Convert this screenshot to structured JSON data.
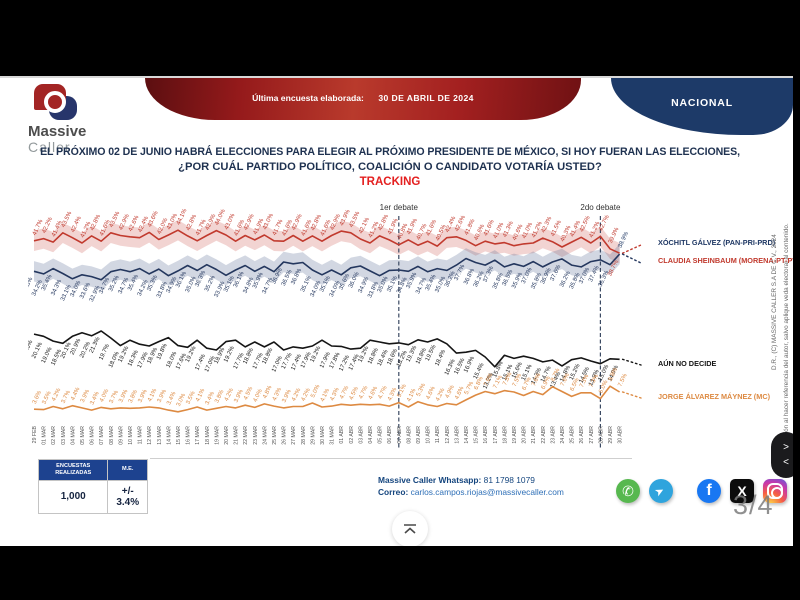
{
  "header": {
    "logo_line1": "Massive",
    "logo_line2": "Caller",
    "banner_label": "Última encuesta elaborada:",
    "banner_date": "30 DE ABRIL DE 2024",
    "region_button": "NACIONAL"
  },
  "question": {
    "line1": "EL PRÓXIMO 02 DE JUNIO HABRÁ ELECCIONES PARA ELEGIR AL PRÓXIMO PRESIDENTE DE MÉXICO, SI HOY FUERAN LAS ELECCIONES,",
    "line2": "¿POR CUÁL PARTIDO POLÍTICO, COALICIÓN O CANDIDATO VOTARÍA USTED?",
    "tracking": "TRACKING"
  },
  "chart_data": {
    "type": "line",
    "title": "TRACKING",
    "grid": false,
    "legend_position": "right",
    "ylim": [
      0,
      50
    ],
    "x": [
      "29 FEB",
      "01 MAR",
      "02 MAR",
      "03 MAR",
      "04 MAR",
      "05 MAR",
      "06 MAR",
      "07 MAR",
      "08 MAR",
      "09 MAR",
      "10 MAR",
      "11 MAR",
      "12 MAR",
      "13 MAR",
      "14 MAR",
      "15 MAR",
      "16 MAR",
      "17 MAR",
      "18 MAR",
      "19 MAR",
      "20 MAR",
      "21 MAR",
      "22 MAR",
      "23 MAR",
      "24 MAR",
      "25 MAR",
      "26 MAR",
      "27 MAR",
      "28 MAR",
      "29 MAR",
      "30 MAR",
      "31 MAR",
      "01 ABR",
      "02 ABR",
      "03 ABR",
      "04 ABR",
      "05 ABR",
      "06 ABR",
      "07 ABR",
      "08 ABR",
      "09 ABR",
      "10 ABR",
      "11 ABR",
      "12 ABR",
      "13 ABR",
      "14 ABR",
      "15 ABR",
      "16 ABR",
      "17 ABR",
      "18 ABR",
      "19 ABR",
      "20 ABR",
      "21 ABR",
      "22 ABR",
      "23 ABR",
      "24 ABR",
      "25 ABR",
      "26 ABR",
      "27 ABR",
      "28 ABR",
      "29 ABR",
      "30 ABR"
    ],
    "annotations": [
      {
        "label": "1er debate",
        "x": "07 ABR"
      },
      {
        "label": "2do debate",
        "x": "28 ABR"
      }
    ],
    "series": [
      {
        "name": "XÓCHITL GÁLVEZ (PAN-PRI-PRD)",
        "color": "#c13a2e",
        "name_color": "#1f3864",
        "final_label_color": "#1f3864",
        "band_color": "rgba(196,60,50,0.22)",
        "labels_above": true,
        "values": [
          41.7,
          42.2,
          41.4,
          43.5,
          42.4,
          41.2,
          42.8,
          41.6,
          43.5,
          42.9,
          42.6,
          42.4,
          43.6,
          42.0,
          43.0,
          44.1,
          42.8,
          41.7,
          42.9,
          44.0,
          43.0,
          41.6,
          42.9,
          41.9,
          43.0,
          41.7,
          41.6,
          42.9,
          41.6,
          42.8,
          41.6,
          42.9,
          43.9,
          43.5,
          42.1,
          41.2,
          42.8,
          41.9,
          40.8,
          41.9,
          40.7,
          41.6,
          40.5,
          42.4,
          42.6,
          41.8,
          40.6,
          41.6,
          41.0,
          41.3,
          40.6,
          41.0,
          41.2,
          42.3,
          41.5,
          40.3,
          41.4,
          42.5,
          41.2,
          42.7,
          39.9,
          38.9
        ]
      },
      {
        "name": "CLAUDIA SHEINBAUM (MORENA-PT-PVEM)",
        "color": "#24375e",
        "name_color": "#c13a2e",
        "final_label_color": "#c13a2e",
        "band_color": "rgba(95,112,152,0.28)",
        "labels_above": false,
        "values": [
          34.8,
          34.2,
          35.4,
          34.3,
          33.1,
          34.0,
          33.6,
          32.9,
          34.7,
          35.2,
          34.7,
          35.4,
          34.2,
          35.3,
          33.8,
          34.9,
          36.1,
          35.0,
          36.3,
          35.2,
          33.9,
          35.1,
          36.1,
          34.8,
          35.9,
          34.7,
          36.9,
          36.5,
          36.8,
          35.1,
          34.0,
          35.1,
          34.0,
          35.6,
          36.0,
          34.9,
          33.8,
          35.0,
          35.1,
          34.8,
          35.9,
          34.7,
          35.4,
          35.0,
          36.2,
          37.7,
          36.8,
          36.2,
          37.3,
          35.8,
          36.5,
          35.9,
          37.0,
          35.8,
          36.9,
          37.6,
          36.2,
          35.8,
          37.0,
          37.4,
          36.3,
          38.7
        ]
      },
      {
        "name": "AÚN NO DECIDE",
        "color": "#151515",
        "name_color": "#151515",
        "final_label_color": "#151515",
        "band_color": null,
        "labels_above": false,
        "values": [
          20.6,
          20.1,
          19.0,
          18.5,
          20.1,
          20.9,
          20.2,
          21.3,
          19.7,
          18.0,
          19.2,
          18.3,
          17.9,
          18.9,
          19.8,
          18.0,
          17.6,
          19.2,
          17.4,
          17.0,
          18.9,
          19.2,
          17.7,
          18.8,
          17.7,
          18.8,
          17.0,
          17.7,
          17.4,
          17.9,
          19.2,
          17.9,
          17.8,
          17.2,
          17.4,
          19.2,
          18.8,
          18.4,
          18.6,
          18.2,
          19.3,
          18.8,
          19.5,
          18.4,
          16.3,
          16.5,
          16.9,
          15.4,
          13.2,
          15.8,
          15.1,
          15.6,
          15.1,
          14.3,
          14.7,
          13.4,
          14.8,
          15.2,
          14.5,
          13.9,
          15.0,
          14.9
        ]
      },
      {
        "name": "JORGE ÁLVAREZ MÁYNEZ (MC)",
        "color": "#dd8a42",
        "name_color": "#dd8a42",
        "final_label_color": "#dd8a42",
        "band_color": null,
        "labels_above": true,
        "values": [
          3.6,
          3.5,
          4.2,
          3.7,
          4.4,
          3.9,
          3.4,
          4.0,
          3.7,
          3.9,
          3.8,
          3.9,
          4.1,
          3.9,
          3.4,
          3.0,
          3.5,
          4.1,
          3.4,
          3.8,
          4.2,
          3.9,
          4.5,
          4.0,
          4.8,
          4.3,
          3.9,
          4.2,
          4.2,
          5.0,
          4.1,
          4.3,
          4.7,
          4.5,
          4.7,
          4.6,
          4.7,
          4.3,
          5.1,
          4.1,
          5.3,
          4.6,
          4.2,
          4.9,
          4.6,
          5.7,
          6.8,
          7.6,
          7.1,
          7.8,
          7.5,
          6.7,
          7.6,
          6.9,
          8.7,
          7.6,
          6.5,
          7.3,
          7.3,
          6.0,
          8.8,
          7.5
        ]
      }
    ]
  },
  "footer": {
    "table": {
      "header1": "ENCUESTAS REALIZADAS",
      "header2": "M.E.",
      "value1": "1,000",
      "value2": "+/- 3.4%"
    },
    "contact": {
      "whatsapp_label": "Massive Caller Whatsapp:",
      "whatsapp_number": " 81 1798 1079",
      "email_label": "Correo:",
      "email": " carlos.campos.riojas@massivecaller.com"
    },
    "social_icons": [
      "whatsapp-icon",
      "telegram-icon",
      "facebook-icon",
      "x-icon",
      "instagram-icon"
    ],
    "facebook_glyph": "f",
    "x_glyph": "X",
    "telegram_glyph": "➤",
    "whatsapp_glyph": "✆"
  },
  "page_indicator": "3/4",
  "sidebar": {
    "copyright": "D.R., (C) MASSIVE CALLER S.A DE C.V., 2024",
    "disclaimer": "za la reproducción al hacer referencia del autor, salvo aplique veda electoral al contenido."
  },
  "nav": {
    "prev": "<",
    "next": ">"
  },
  "colors": {
    "banner_red": "#9c1b1c",
    "corner_navy": "#1d3a68",
    "tracking_red": "#e41f1f",
    "title_navy": "#1e3150",
    "table_header_blue": "#1d428f"
  }
}
